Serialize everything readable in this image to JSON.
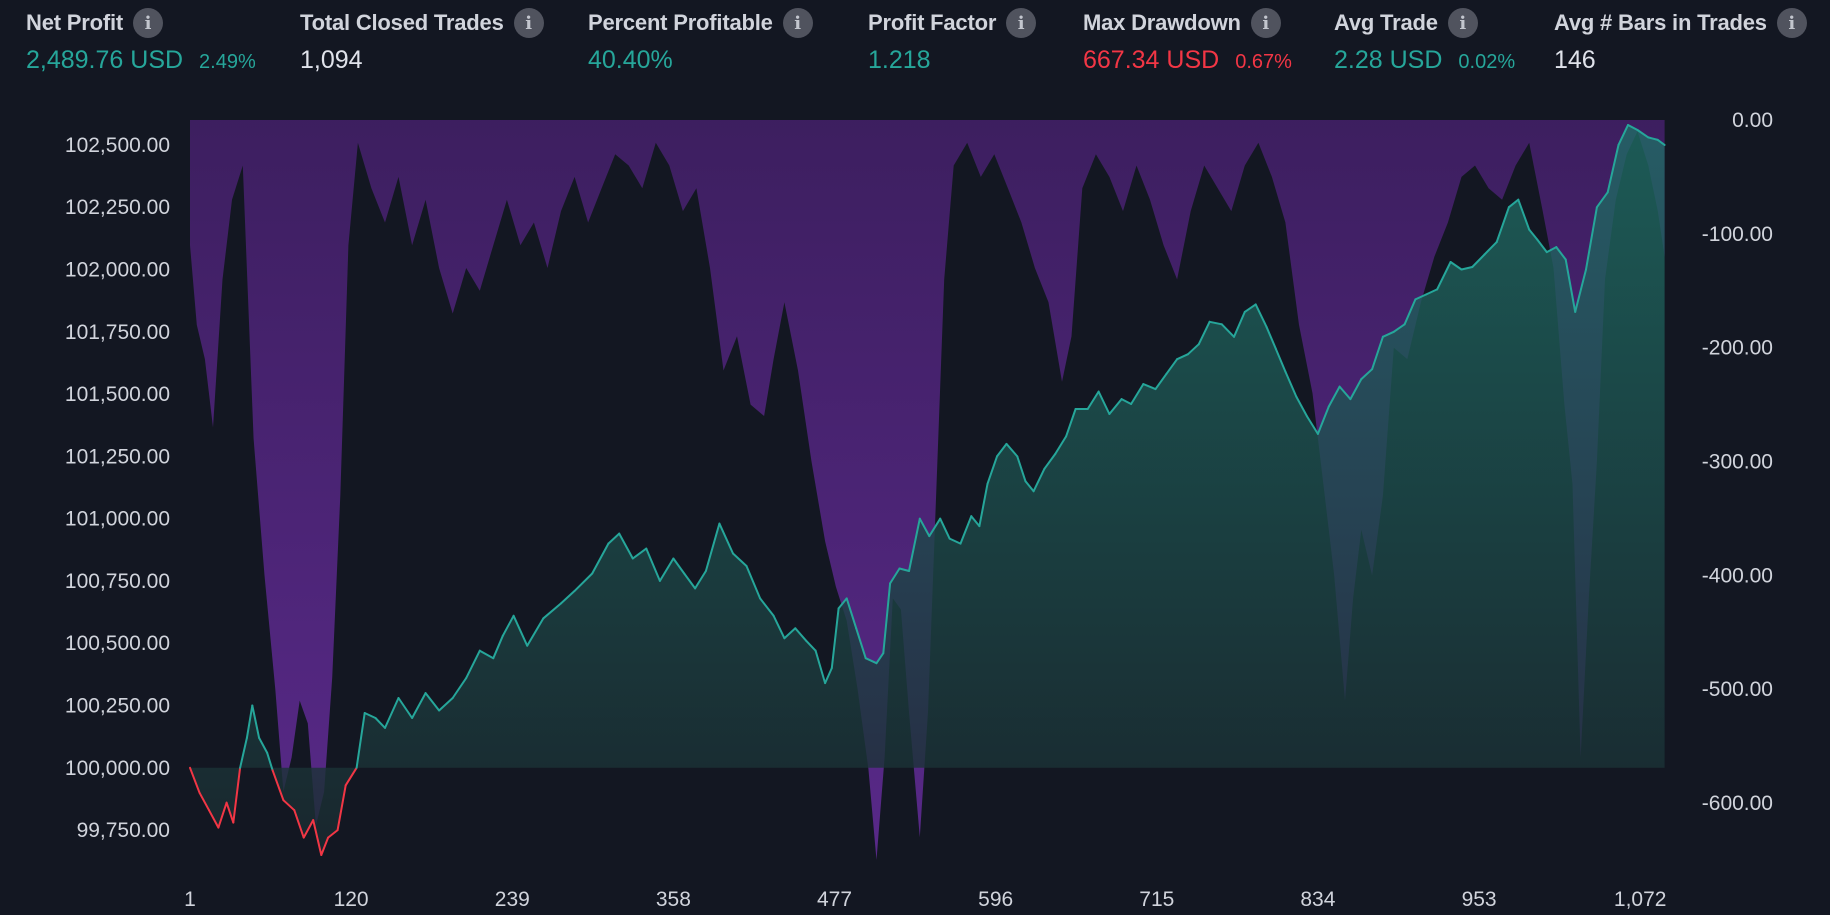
{
  "stats": [
    {
      "label": "Net Profit",
      "value": "2,489.76 USD",
      "sub": "2.49%",
      "tone": "green"
    },
    {
      "label": "Total Closed Trades",
      "value": "1,094",
      "sub": "",
      "tone": "white"
    },
    {
      "label": "Percent Profitable",
      "value": "40.40%",
      "sub": "",
      "tone": "green"
    },
    {
      "label": "Profit Factor",
      "value": "1.218",
      "sub": "",
      "tone": "green"
    },
    {
      "label": "Max Drawdown",
      "value": "667.34 USD",
      "sub": "0.67%",
      "tone": "red"
    },
    {
      "label": "Avg Trade",
      "value": "2.28 USD",
      "sub": "0.02%",
      "tone": "green"
    },
    {
      "label": "Avg # Bars in Trades",
      "value": "146",
      "sub": "",
      "tone": "white"
    }
  ],
  "info_icon": "info-icon",
  "chart_data": {
    "type": "area",
    "title": "",
    "xlabel": "",
    "ylabel": "",
    "x_ticks": [
      "1",
      "120",
      "239",
      "358",
      "477",
      "596",
      "715",
      "834",
      "953",
      "1,072"
    ],
    "y_left_ticks": [
      "102,500.00",
      "102,250.00",
      "102,000.00",
      "101,750.00",
      "101,500.00",
      "101,250.00",
      "101,000.00",
      "100,750.00",
      "100,500.00",
      "100,250.00",
      "100,000.00",
      "99,750.00"
    ],
    "y_right_ticks": [
      "0.00",
      "-100.00",
      "-200.00",
      "-300.00",
      "-400.00",
      "-500.00",
      "-600.00"
    ],
    "x_range": [
      1,
      1094
    ],
    "y_left_range": [
      99630,
      102600
    ],
    "y_right_range": [
      -650,
      0
    ],
    "baseline_equity": 100000,
    "series": [
      {
        "name": "",
        "color_above": "#26a69a",
        "color_below": "#f23645",
        "points": [
          [
            1,
            100000
          ],
          [
            8,
            99900
          ],
          [
            15,
            99830
          ],
          [
            22,
            99760
          ],
          [
            28,
            99860
          ],
          [
            33,
            99780
          ],
          [
            38,
            100000
          ],
          [
            43,
            100120
          ],
          [
            47,
            100250
          ],
          [
            52,
            100120
          ],
          [
            58,
            100060
          ],
          [
            62,
            99990
          ],
          [
            70,
            99870
          ],
          [
            78,
            99830
          ],
          [
            85,
            99720
          ],
          [
            92,
            99790
          ],
          [
            98,
            99650
          ],
          [
            103,
            99720
          ],
          [
            110,
            99750
          ],
          [
            116,
            99930
          ],
          [
            124,
            100000
          ],
          [
            130,
            100220
          ],
          [
            138,
            100200
          ],
          [
            145,
            100160
          ],
          [
            155,
            100280
          ],
          [
            165,
            100200
          ],
          [
            175,
            100300
          ],
          [
            185,
            100230
          ],
          [
            195,
            100280
          ],
          [
            205,
            100360
          ],
          [
            215,
            100470
          ],
          [
            225,
            100440
          ],
          [
            232,
            100530
          ],
          [
            240,
            100610
          ],
          [
            250,
            100490
          ],
          [
            262,
            100600
          ],
          [
            275,
            100660
          ],
          [
            285,
            100710
          ],
          [
            298,
            100780
          ],
          [
            310,
            100900
          ],
          [
            318,
            100940
          ],
          [
            328,
            100840
          ],
          [
            338,
            100880
          ],
          [
            348,
            100750
          ],
          [
            358,
            100840
          ],
          [
            366,
            100780
          ],
          [
            374,
            100720
          ],
          [
            382,
            100790
          ],
          [
            392,
            100980
          ],
          [
            402,
            100860
          ],
          [
            412,
            100810
          ],
          [
            422,
            100680
          ],
          [
            432,
            100610
          ],
          [
            440,
            100520
          ],
          [
            448,
            100560
          ],
          [
            456,
            100510
          ],
          [
            463,
            100470
          ],
          [
            470,
            100340
          ],
          [
            475,
            100400
          ],
          [
            480,
            100640
          ],
          [
            486,
            100680
          ],
          [
            493,
            100560
          ],
          [
            500,
            100440
          ],
          [
            508,
            100420
          ],
          [
            513,
            100460
          ],
          [
            518,
            100740
          ],
          [
            525,
            100800
          ],
          [
            532,
            100790
          ],
          [
            540,
            101000
          ],
          [
            547,
            100930
          ],
          [
            555,
            101000
          ],
          [
            562,
            100920
          ],
          [
            570,
            100900
          ],
          [
            578,
            101010
          ],
          [
            584,
            100970
          ],
          [
            590,
            101140
          ],
          [
            597,
            101250
          ],
          [
            604,
            101300
          ],
          [
            612,
            101250
          ],
          [
            618,
            101150
          ],
          [
            624,
            101110
          ],
          [
            632,
            101200
          ],
          [
            640,
            101260
          ],
          [
            648,
            101330
          ],
          [
            655,
            101440
          ],
          [
            664,
            101440
          ],
          [
            672,
            101510
          ],
          [
            680,
            101420
          ],
          [
            689,
            101480
          ],
          [
            696,
            101460
          ],
          [
            705,
            101540
          ],
          [
            714,
            101520
          ],
          [
            722,
            101580
          ],
          [
            730,
            101640
          ],
          [
            738,
            101660
          ],
          [
            746,
            101700
          ],
          [
            754,
            101790
          ],
          [
            763,
            101780
          ],
          [
            772,
            101730
          ],
          [
            780,
            101830
          ],
          [
            788,
            101860
          ],
          [
            796,
            101770
          ],
          [
            803,
            101680
          ],
          [
            810,
            101590
          ],
          [
            818,
            101490
          ],
          [
            826,
            101410
          ],
          [
            834,
            101340
          ],
          [
            842,
            101450
          ],
          [
            850,
            101530
          ],
          [
            858,
            101480
          ],
          [
            866,
            101560
          ],
          [
            874,
            101600
          ],
          [
            882,
            101730
          ],
          [
            890,
            101750
          ],
          [
            898,
            101780
          ],
          [
            906,
            101880
          ],
          [
            914,
            101900
          ],
          [
            922,
            101920
          ],
          [
            932,
            102030
          ],
          [
            940,
            102000
          ],
          [
            948,
            102010
          ],
          [
            957,
            102060
          ],
          [
            966,
            102110
          ],
          [
            975,
            102250
          ],
          [
            982,
            102280
          ],
          [
            990,
            102160
          ],
          [
            996,
            102120
          ],
          [
            1003,
            102070
          ],
          [
            1010,
            102090
          ],
          [
            1017,
            102040
          ],
          [
            1024,
            101830
          ],
          [
            1032,
            102000
          ],
          [
            1040,
            102250
          ],
          [
            1048,
            102310
          ],
          [
            1056,
            102500
          ],
          [
            1063,
            102580
          ],
          [
            1070,
            102560
          ],
          [
            1078,
            102530
          ],
          [
            1085,
            102520
          ],
          [
            1090,
            102500
          ]
        ]
      },
      {
        "name": "",
        "color": "#6a2b9e",
        "points": [
          [
            1,
            -110
          ],
          [
            6,
            -180
          ],
          [
            12,
            -210
          ],
          [
            18,
            -270
          ],
          [
            25,
            -140
          ],
          [
            32,
            -70
          ],
          [
            40,
            -40
          ],
          [
            48,
            -280
          ],
          [
            56,
            -400
          ],
          [
            64,
            -500
          ],
          [
            70,
            -590
          ],
          [
            76,
            -560
          ],
          [
            82,
            -510
          ],
          [
            88,
            -530
          ],
          [
            94,
            -620
          ],
          [
            100,
            -590
          ],
          [
            106,
            -490
          ],
          [
            112,
            -330
          ],
          [
            118,
            -110
          ],
          [
            125,
            -20
          ],
          [
            135,
            -60
          ],
          [
            145,
            -90
          ],
          [
            155,
            -50
          ],
          [
            165,
            -110
          ],
          [
            175,
            -70
          ],
          [
            185,
            -130
          ],
          [
            195,
            -170
          ],
          [
            205,
            -130
          ],
          [
            215,
            -150
          ],
          [
            225,
            -110
          ],
          [
            235,
            -70
          ],
          [
            245,
            -110
          ],
          [
            255,
            -90
          ],
          [
            265,
            -130
          ],
          [
            275,
            -80
          ],
          [
            285,
            -50
          ],
          [
            295,
            -90
          ],
          [
            305,
            -60
          ],
          [
            315,
            -30
          ],
          [
            325,
            -40
          ],
          [
            335,
            -60
          ],
          [
            345,
            -20
          ],
          [
            355,
            -40
          ],
          [
            365,
            -80
          ],
          [
            375,
            -60
          ],
          [
            385,
            -130
          ],
          [
            395,
            -220
          ],
          [
            405,
            -190
          ],
          [
            415,
            -250
          ],
          [
            425,
            -260
          ],
          [
            432,
            -210
          ],
          [
            440,
            -160
          ],
          [
            450,
            -220
          ],
          [
            460,
            -300
          ],
          [
            470,
            -370
          ],
          [
            478,
            -410
          ],
          [
            486,
            -440
          ],
          [
            494,
            -500
          ],
          [
            502,
            -570
          ],
          [
            508,
            -650
          ],
          [
            514,
            -560
          ],
          [
            520,
            -420
          ],
          [
            526,
            -430
          ],
          [
            532,
            -520
          ],
          [
            540,
            -630
          ],
          [
            546,
            -520
          ],
          [
            552,
            -330
          ],
          [
            558,
            -140
          ],
          [
            565,
            -40
          ],
          [
            575,
            -20
          ],
          [
            585,
            -50
          ],
          [
            595,
            -30
          ],
          [
            605,
            -60
          ],
          [
            615,
            -90
          ],
          [
            625,
            -130
          ],
          [
            635,
            -160
          ],
          [
            645,
            -230
          ],
          [
            652,
            -190
          ],
          [
            660,
            -60
          ],
          [
            670,
            -30
          ],
          [
            680,
            -50
          ],
          [
            690,
            -80
          ],
          [
            700,
            -40
          ],
          [
            710,
            -70
          ],
          [
            720,
            -110
          ],
          [
            730,
            -140
          ],
          [
            740,
            -80
          ],
          [
            750,
            -40
          ],
          [
            760,
            -60
          ],
          [
            770,
            -80
          ],
          [
            780,
            -40
          ],
          [
            790,
            -20
          ],
          [
            800,
            -50
          ],
          [
            810,
            -90
          ],
          [
            820,
            -180
          ],
          [
            830,
            -240
          ],
          [
            838,
            -320
          ],
          [
            846,
            -400
          ],
          [
            854,
            -510
          ],
          [
            860,
            -420
          ],
          [
            866,
            -360
          ],
          [
            874,
            -400
          ],
          [
            882,
            -330
          ],
          [
            890,
            -200
          ],
          [
            900,
            -210
          ],
          [
            910,
            -160
          ],
          [
            920,
            -120
          ],
          [
            930,
            -90
          ],
          [
            940,
            -50
          ],
          [
            950,
            -40
          ],
          [
            960,
            -60
          ],
          [
            970,
            -70
          ],
          [
            980,
            -40
          ],
          [
            990,
            -20
          ],
          [
            1000,
            -80
          ],
          [
            1008,
            -130
          ],
          [
            1016,
            -250
          ],
          [
            1022,
            -320
          ],
          [
            1028,
            -560
          ],
          [
            1034,
            -420
          ],
          [
            1040,
            -300
          ],
          [
            1046,
            -140
          ],
          [
            1054,
            -70
          ],
          [
            1062,
            -30
          ],
          [
            1070,
            -10
          ],
          [
            1078,
            -40
          ],
          [
            1085,
            -80
          ],
          [
            1090,
            -120
          ]
        ]
      }
    ],
    "grid": false,
    "legend": "none"
  }
}
